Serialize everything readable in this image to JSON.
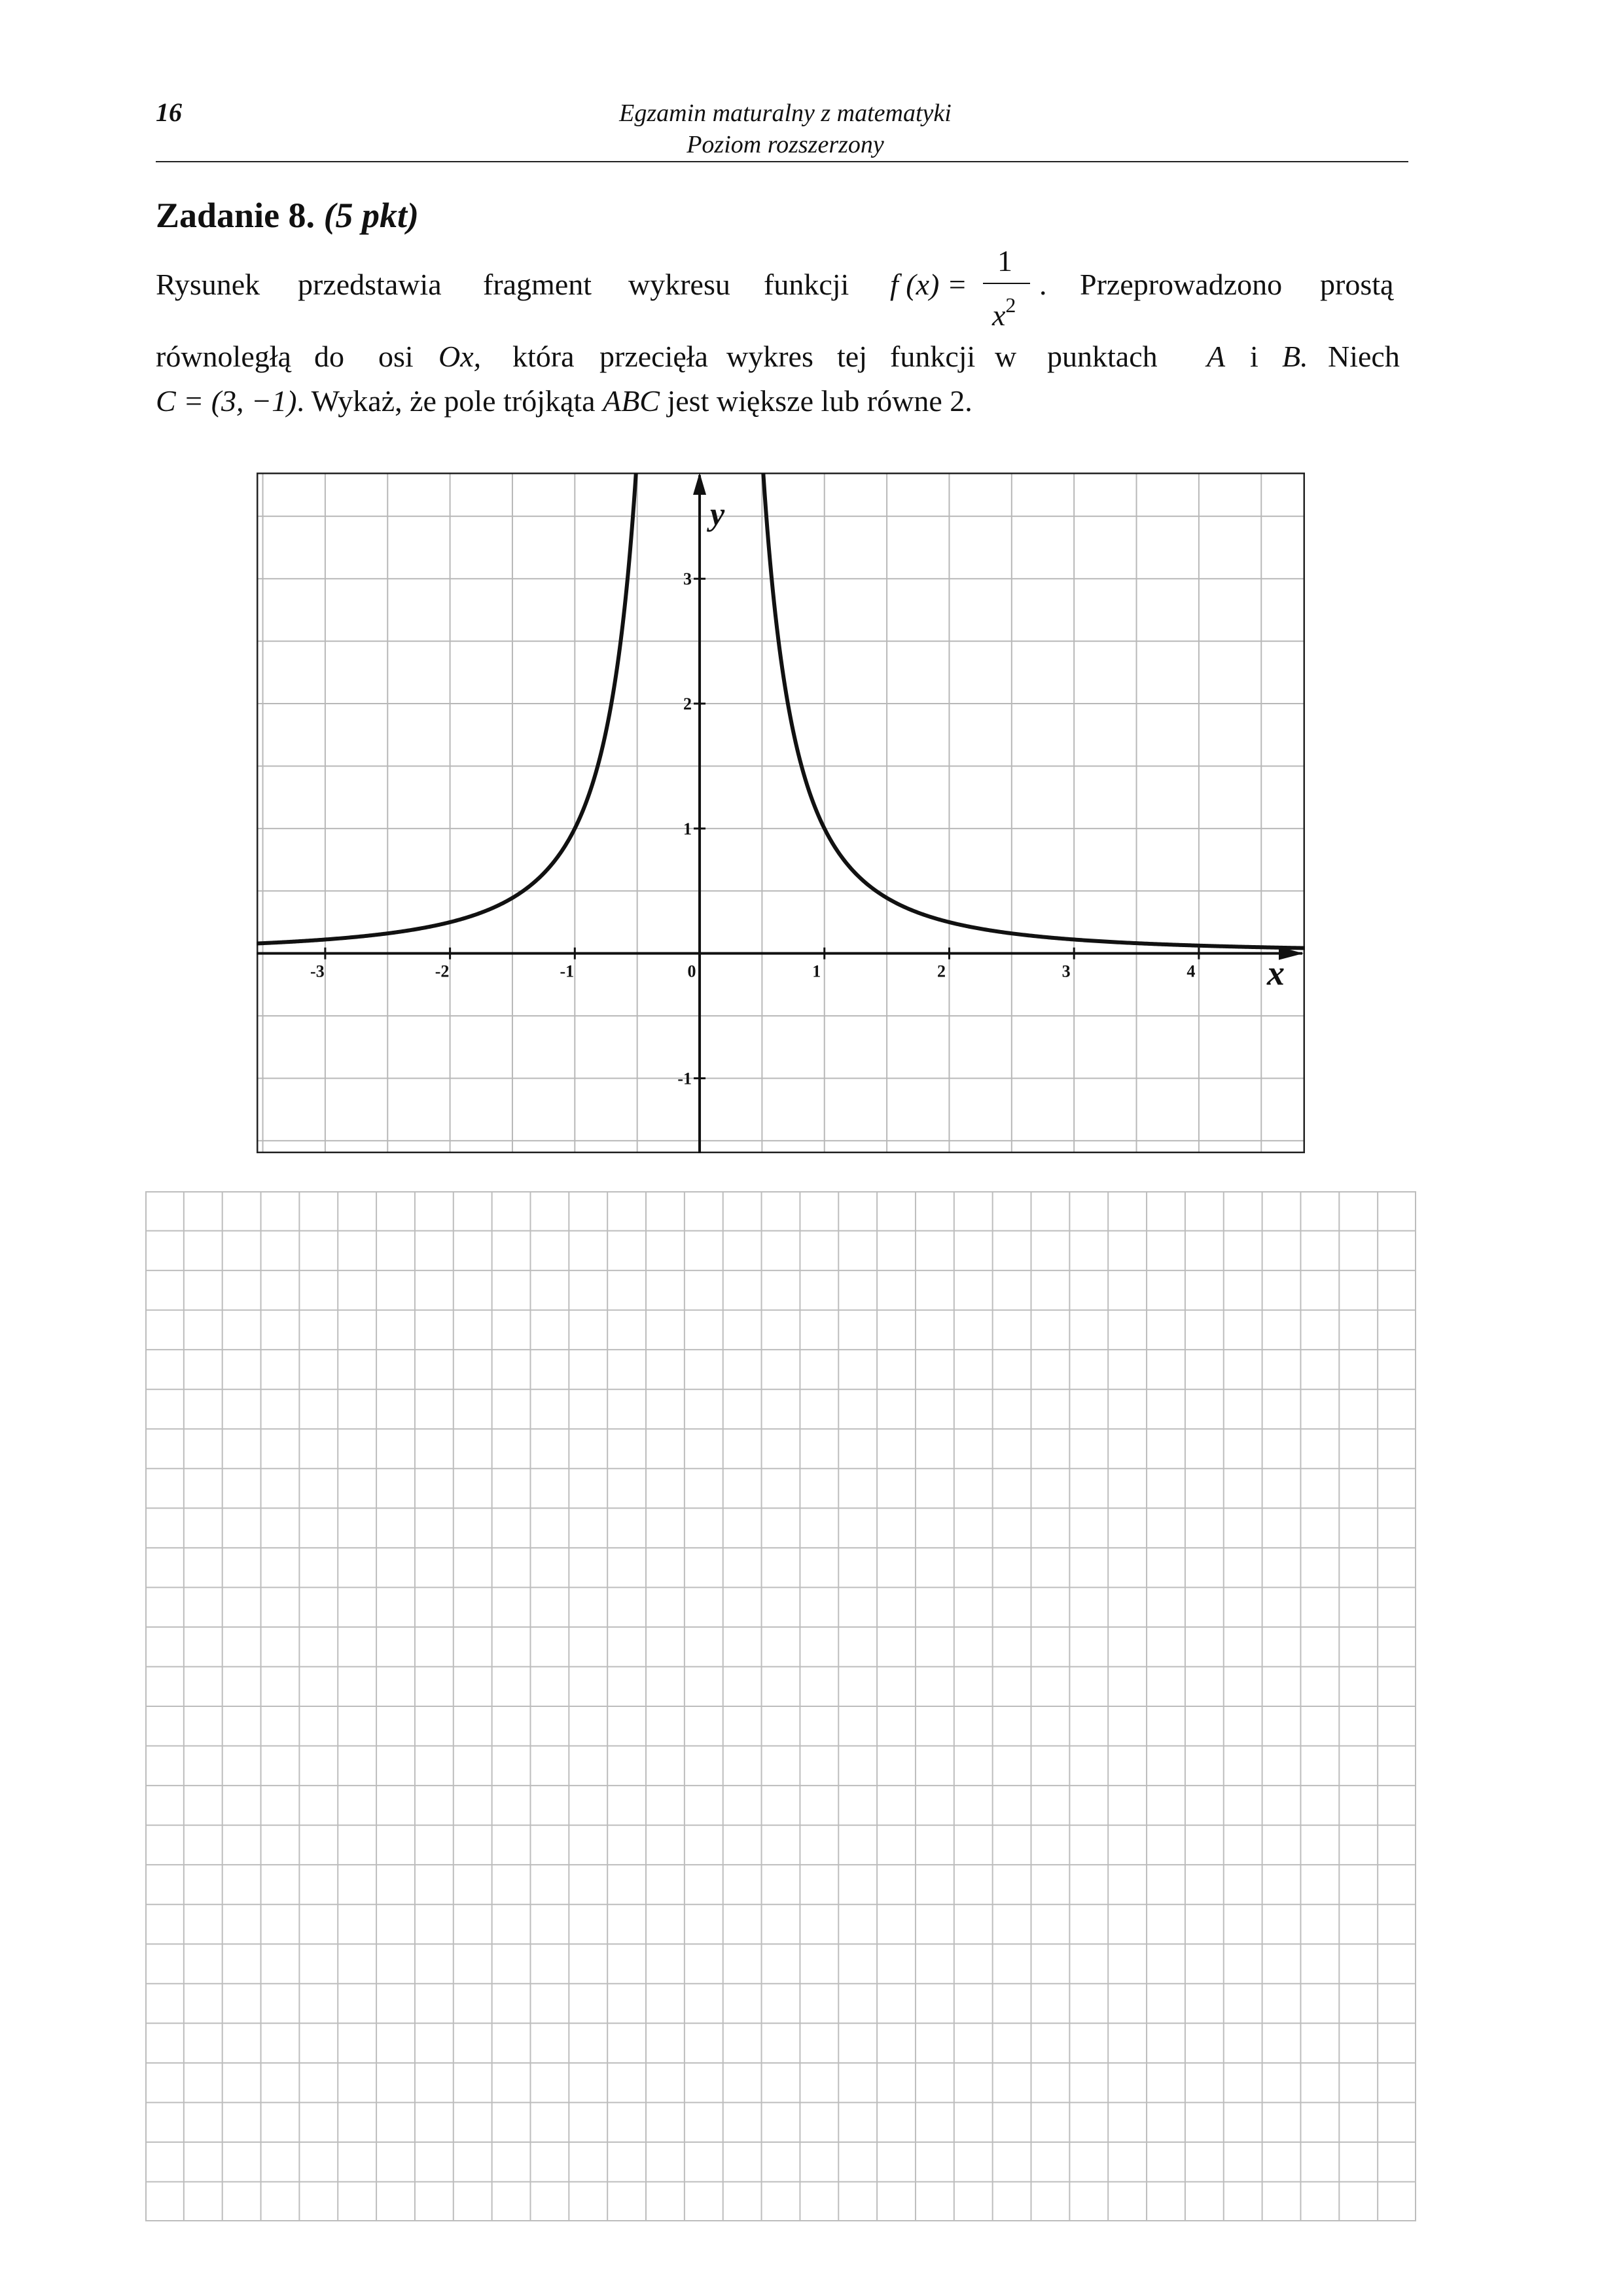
{
  "header": {
    "page_number": "16",
    "title_line_1": "Egzamin maturalny z matematyki",
    "title_line_2": "Poziom rozszerzony"
  },
  "task": {
    "label": "Zadanie 8.",
    "points": "(5 pkt)",
    "line1_words": [
      "Rysunek",
      "przedstawia",
      "fragment",
      "wykresu",
      "funkcji"
    ],
    "function_lhs": "f (x) =",
    "frac_numerator": "1",
    "frac_denominator": "x",
    "frac_exponent": "2",
    "line1_end_period": ".",
    "line1_end_words": [
      "Przeprowadzono",
      "prostą"
    ],
    "line2_words": [
      "równoległą",
      "do",
      "osi",
      "Ox,",
      "która",
      "przecięła",
      "wykres",
      "tej",
      "funkcji",
      "w",
      "punktach",
      "A",
      "i",
      "B.",
      "Niech"
    ],
    "line3": {
      "point_c": "C = (3, −1)",
      "text_a": ". Wykaż, że pole trójkąta",
      "abc": "ABC",
      "text_b": "jest większe lub równe 2."
    }
  },
  "chart_data": {
    "type": "line",
    "function": "1/x^2",
    "xlim": [
      -3.55,
      4.85
    ],
    "ylim": [
      -1.6,
      3.85
    ],
    "x_ticks": [
      -3,
      -2,
      -1,
      0,
      1,
      2,
      3,
      4
    ],
    "y_ticks": [
      -1,
      1,
      2,
      3
    ],
    "x_tick_labels": [
      "-3",
      "-2",
      "-1",
      "0",
      "1",
      "2",
      "3",
      "4"
    ],
    "y_tick_labels": [
      "-1",
      "1",
      "2",
      "3"
    ],
    "xlabel": "x",
    "ylabel": "y",
    "grid": true,
    "series": [
      {
        "branch": "left",
        "x": [
          -3.55,
          -3,
          -2.5,
          -2,
          -1.75,
          -1.5,
          -1.25,
          -1,
          -0.9,
          -0.8,
          -0.7,
          -0.6,
          -0.55,
          -0.51
        ],
        "y": [
          0.079,
          0.111,
          0.16,
          0.25,
          0.327,
          0.444,
          0.64,
          1,
          1.235,
          1.5625,
          2.041,
          2.778,
          3.306,
          3.845
        ]
      },
      {
        "branch": "right",
        "x": [
          0.51,
          0.55,
          0.6,
          0.7,
          0.8,
          0.9,
          1,
          1.25,
          1.5,
          1.75,
          2,
          2.5,
          3,
          3.5,
          4,
          4.5,
          4.85
        ],
        "y": [
          3.845,
          3.306,
          2.778,
          2.041,
          1.5625,
          1.235,
          1,
          0.64,
          0.444,
          0.327,
          0.25,
          0.16,
          0.111,
          0.082,
          0.0625,
          0.049,
          0.043
        ]
      }
    ]
  }
}
